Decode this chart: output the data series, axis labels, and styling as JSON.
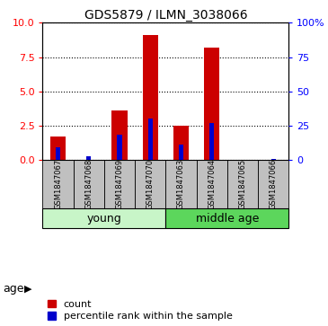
{
  "title": "GDS5879 / ILMN_3038066",
  "samples": [
    "GSM1847067",
    "GSM1847068",
    "GSM1847069",
    "GSM1847070",
    "GSM1847063",
    "GSM1847064",
    "GSM1847065",
    "GSM1847066"
  ],
  "count_values": [
    1.7,
    0.0,
    3.6,
    9.1,
    2.5,
    8.2,
    0.0,
    0.0
  ],
  "percentile_values": [
    9.0,
    2.5,
    18.0,
    30.0,
    11.0,
    27.0,
    0.0,
    0.5
  ],
  "groups": [
    {
      "label": "young",
      "start": 0,
      "end": 3,
      "color": "#90EE90"
    },
    {
      "label": "middle age",
      "start": 4,
      "end": 7,
      "color": "#4CBB47"
    }
  ],
  "ylim_left": [
    0,
    10
  ],
  "ylim_right": [
    0,
    100
  ],
  "yticks_left": [
    0,
    2.5,
    5,
    7.5,
    10
  ],
  "yticks_right": [
    0,
    25,
    50,
    75,
    100
  ],
  "bar_color_red": "#cc0000",
  "bar_color_blue": "#0000cc",
  "bg_color_sample": "#c0c0c0",
  "legend_count": "count",
  "legend_percentile": "percentile rank within the sample",
  "title_fontsize": 10,
  "tick_fontsize": 8,
  "sample_fontsize": 6,
  "group_fontsize": 9,
  "legend_fontsize": 8
}
